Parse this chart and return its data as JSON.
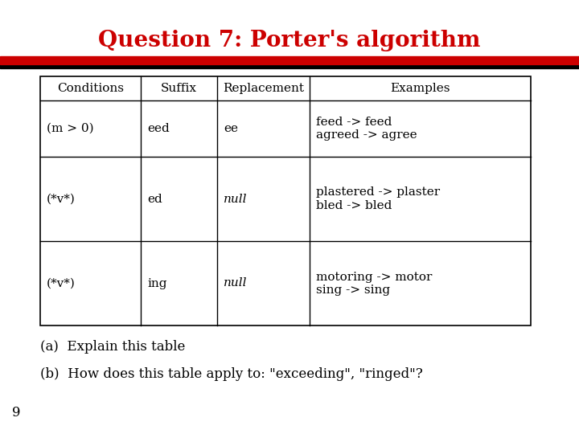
{
  "title": "Question 7: Porter's algorithm",
  "title_color": "#cc0000",
  "title_fontsize": 20,
  "title_fontstyle": "bold",
  "title_fontfamily": "serif",
  "bg_color": "#ffffff",
  "table_headers": [
    "Conditions",
    "Suffix",
    "Replacement",
    "Examples"
  ],
  "table_rows": [
    [
      "(m > 0)",
      "eed",
      "ee",
      "feed -> feed\nagreed -> agree"
    ],
    [
      "(*v*)",
      "ed",
      "null",
      "plastered -> plaster\nbled -> bled"
    ],
    [
      "(*v*)",
      "ing",
      "null",
      "motoring -> motor\nsing -> sing"
    ]
  ],
  "footnote_a": "(a)  Explain this table",
  "footnote_b": "(b)  How does this table apply to: \"exceeding\", \"ringed\"?",
  "page_number": "9",
  "font_size_table": 11,
  "font_size_footnote": 12
}
